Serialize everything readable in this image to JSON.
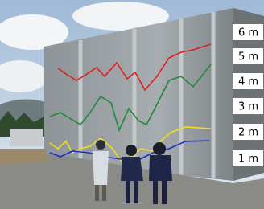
{
  "labels": [
    "6 m",
    "5 m",
    "4 m",
    "3 m",
    "2 m",
    "1 m"
  ]
}
